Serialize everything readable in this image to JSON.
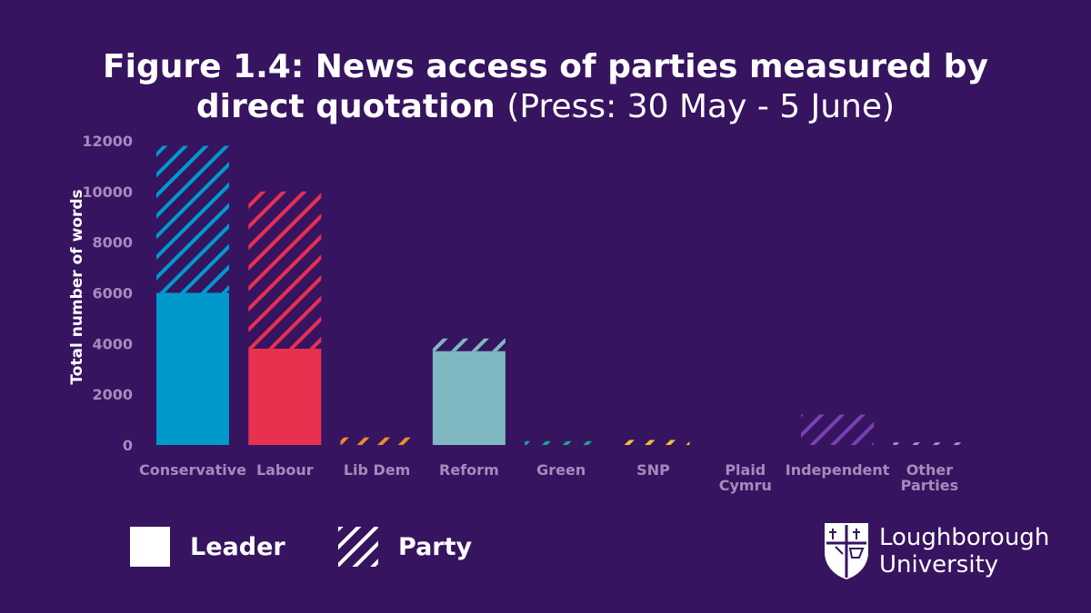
{
  "title": {
    "main_line1": "Figure 1.4: News access of parties measured by",
    "main_line2": "direct quotation",
    "subtitle": "(Press: 30 May - 5 June)"
  },
  "legend": {
    "leader": "Leader",
    "party": "Party"
  },
  "logo": {
    "line1": "Loughborough",
    "line2": "University"
  },
  "colors": {
    "background": "#361460",
    "axis_text": "#a48bbd",
    "conservative": "#0099cc",
    "labour": "#e8304f",
    "lib_dem": "#f08a2c",
    "reform": "#7fb8c0",
    "green": "#1fa58e",
    "snp": "#f2c12e",
    "plaid_cymru": "#2f9e55",
    "independent": "#7a3fb0",
    "other": "#9aa0b5"
  },
  "chart_data": {
    "type": "bar",
    "stacked": true,
    "title": "Figure 1.4: News access of parties measured by direct quotation",
    "subtitle": "(Press: 30 May - 5 June)",
    "xlabel": "",
    "ylabel": "Total number of words",
    "ylim": [
      0,
      12000
    ],
    "yticks": [
      0,
      2000,
      4000,
      6000,
      8000,
      10000,
      12000
    ],
    "categories": [
      "Conservative",
      "Labour",
      "Lib Dem",
      "Reform",
      "Green",
      "SNP",
      "Plaid Cymru",
      "Independent",
      "Other Parties"
    ],
    "category_lines": [
      [
        "Conservative"
      ],
      [
        "Labour"
      ],
      [
        "Lib Dem"
      ],
      [
        "Reform"
      ],
      [
        "Green"
      ],
      [
        "SNP"
      ],
      [
        "Plaid",
        "Cymru"
      ],
      [
        "Independent"
      ],
      [
        "Other",
        "Parties"
      ]
    ],
    "category_colors": [
      "#0099cc",
      "#e8304f",
      "#f08a2c",
      "#7fb8c0",
      "#1fa58e",
      "#f2c12e",
      "#2f9e55",
      "#7a3fb0",
      "#9aa0b5"
    ],
    "series": [
      {
        "name": "Leader",
        "style": "solid",
        "values": [
          6000,
          3800,
          0,
          3700,
          0,
          0,
          0,
          0,
          0
        ]
      },
      {
        "name": "Party",
        "style": "hatched",
        "values": [
          5800,
          6200,
          300,
          500,
          150,
          200,
          0,
          1200,
          100
        ]
      }
    ]
  }
}
